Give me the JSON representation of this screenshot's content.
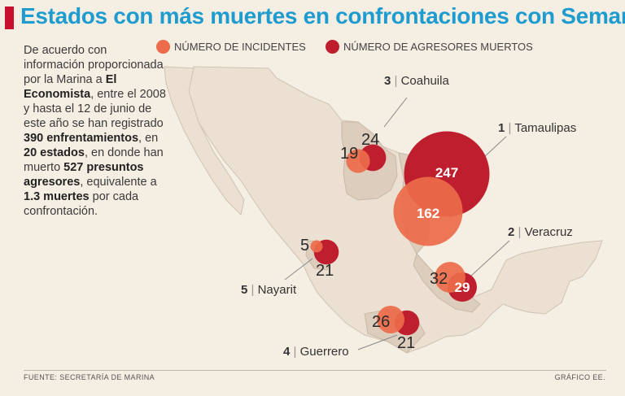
{
  "title": "Estados con más muertes en confrontaciones con Semar",
  "intro": [
    {
      "t": "De acuerdo con información proporcionada por la Marina a ",
      "b": false
    },
    {
      "t": "El Economista",
      "b": true
    },
    {
      "t": ", entre el 2008 y hasta el 12 de junio de este año se han registrado ",
      "b": false
    },
    {
      "t": "390 enfrentamientos",
      "b": true
    },
    {
      "t": ", en ",
      "b": false
    },
    {
      "t": "20 estados",
      "b": true
    },
    {
      "t": ", en donde han muerto ",
      "b": false
    },
    {
      "t": "527 presuntos agresores",
      "b": true
    },
    {
      "t": ", equivalente a ",
      "b": false
    },
    {
      "t": "1.3 muertes",
      "b": true
    },
    {
      "t": " por cada confrontación.",
      "b": false
    }
  ],
  "legend": {
    "incidents": "NÚMERO DE INCIDENTES",
    "deaths": "NÚMERO DE AGRESORES MUERTOS"
  },
  "colors": {
    "incidents": "#eb6b4a",
    "deaths": "#be1e2d",
    "title": "#1f9ccf",
    "land": "#ebe0d2",
    "highlight": "#ddcdbd"
  },
  "states": [
    {
      "rank": "1",
      "name": "Tamaulipas",
      "incidents": "162",
      "deaths": "247"
    },
    {
      "rank": "2",
      "name": "Veracruz",
      "incidents": "32",
      "deaths": "29"
    },
    {
      "rank": "3",
      "name": "Coahuila",
      "incidents": "19",
      "deaths": "24"
    },
    {
      "rank": "4",
      "name": "Guerrero",
      "incidents": "26",
      "deaths": "21"
    },
    {
      "rank": "5",
      "name": "Nayarit",
      "incidents": "5",
      "deaths": "21"
    }
  ],
  "separator": "|",
  "footer": {
    "source": "FUENTE: SECRETARÍA DE MARINA",
    "credit": "GRÁFICO EE."
  }
}
